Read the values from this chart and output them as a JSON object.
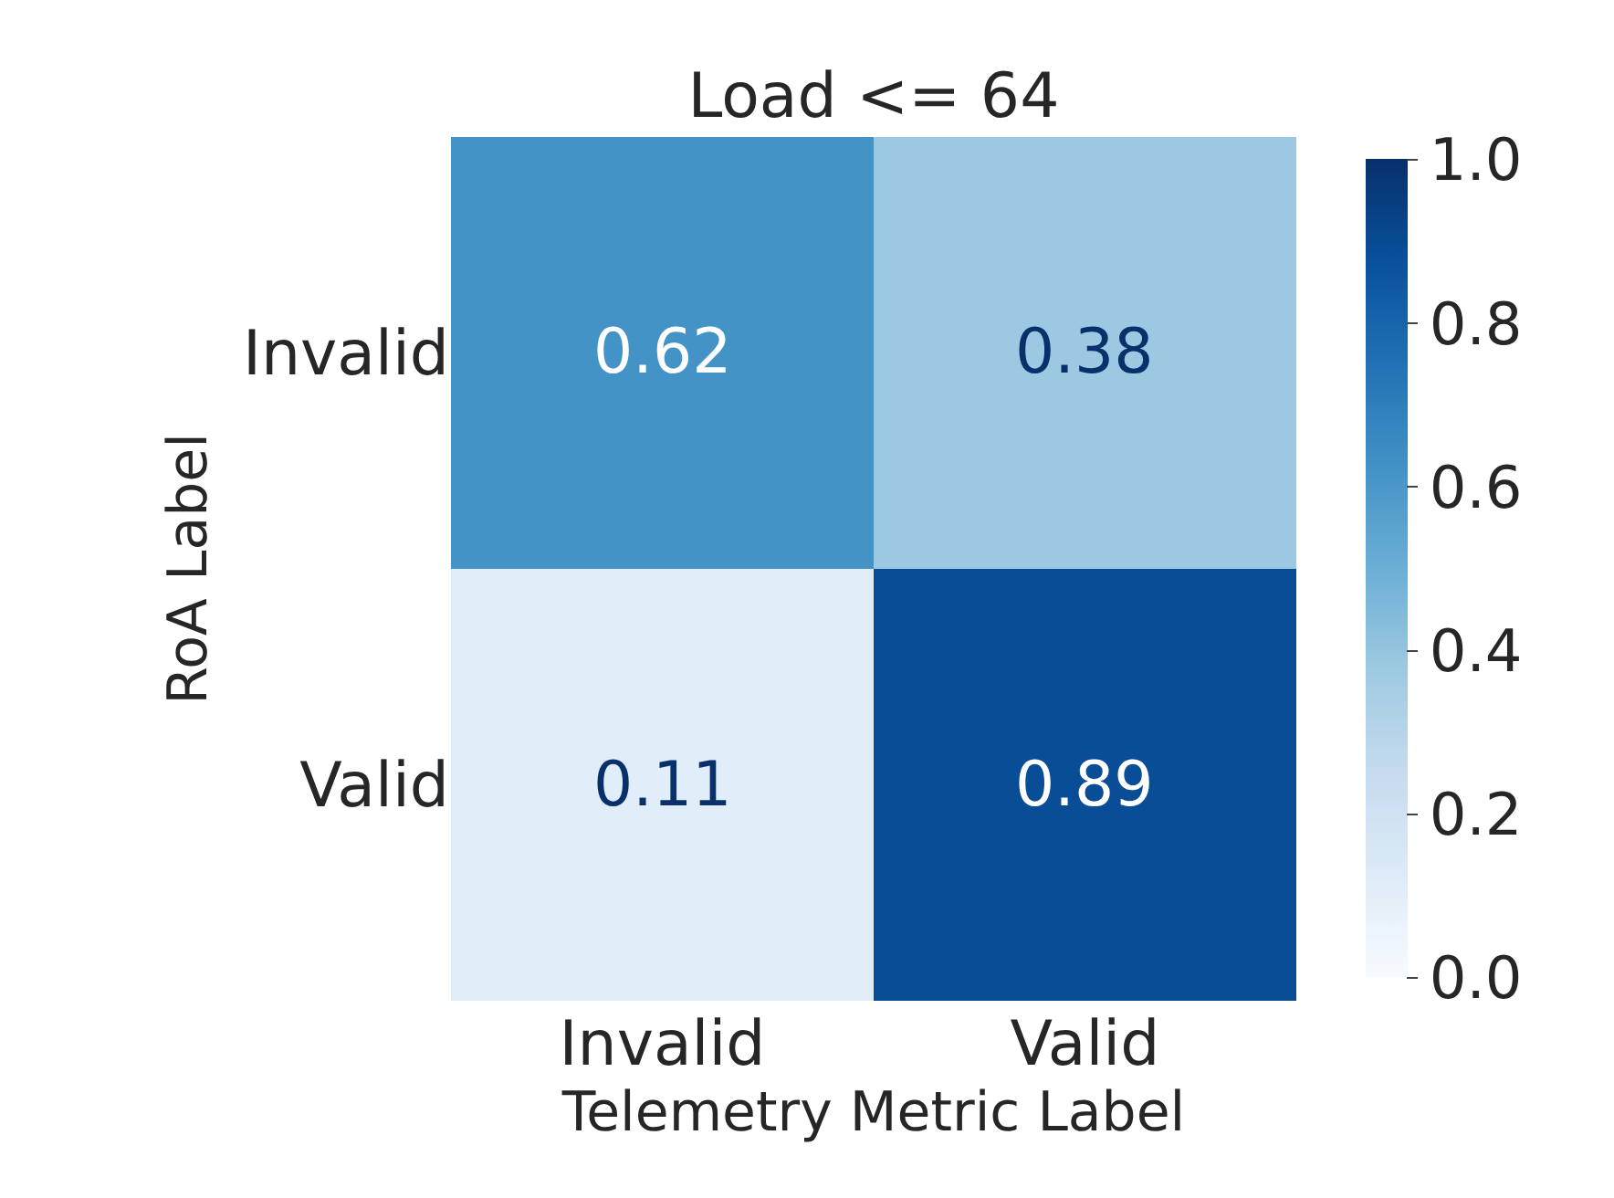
{
  "chart_data": {
    "type": "heatmap",
    "title": "Load <= 64",
    "xlabel": "Telemetry Metric Label",
    "ylabel": "RoA Label",
    "categories": [
      "Invalid",
      "Valid"
    ],
    "y_categories": [
      "Invalid",
      "Valid"
    ],
    "cells": [
      [
        0.62,
        0.38
      ],
      [
        0.11,
        0.89
      ]
    ],
    "data_labels": true,
    "clim": [
      0.0,
      1.0
    ],
    "cticks": [
      {
        "value": 0,
        "label": "0.0"
      },
      {
        "value": 0.2,
        "label": "0.2"
      },
      {
        "value": 0.4,
        "label": "0.4"
      },
      {
        "value": 0.6,
        "label": "0.6"
      },
      {
        "value": 0.8,
        "label": "0.8"
      },
      {
        "value": 1,
        "label": "1.0"
      }
    ]
  }
}
